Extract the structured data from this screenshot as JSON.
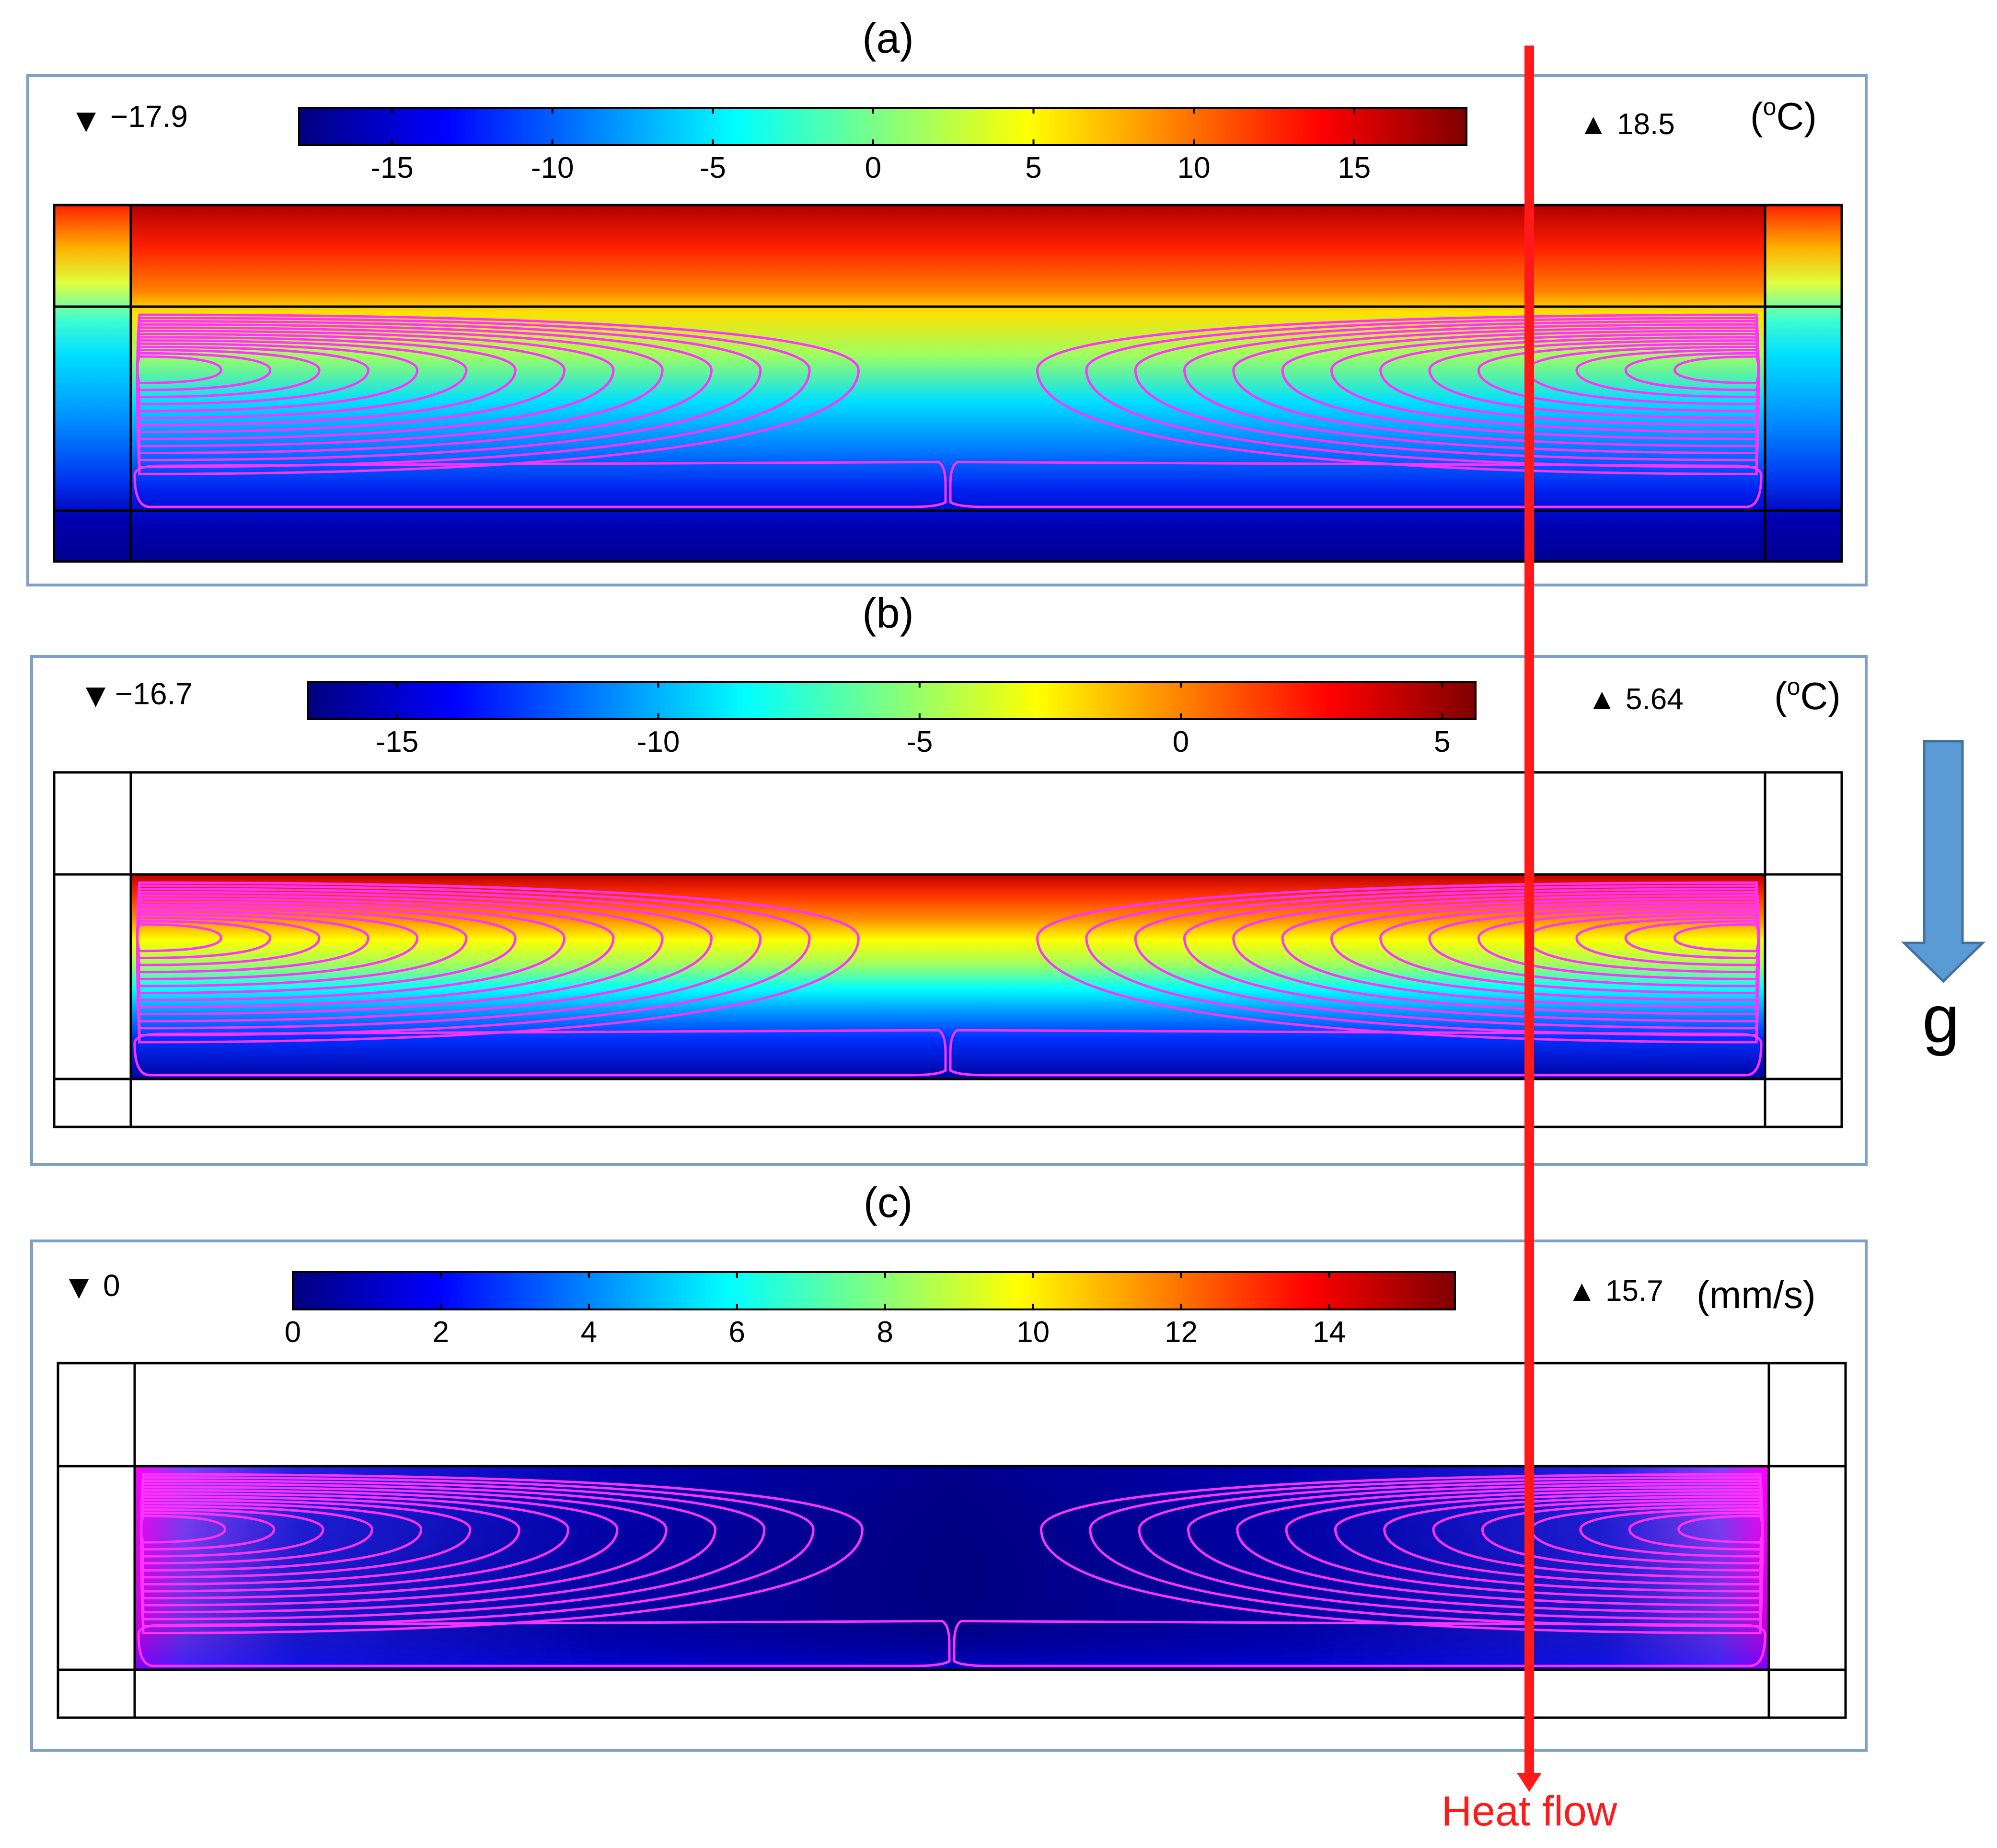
{
  "panels": [
    {
      "label": "(a)",
      "min_text": "−17.9",
      "max_text": "18.5",
      "unit": "(°C)",
      "ticks": [
        {
          "text": "-15",
          "value": -15
        },
        {
          "text": "-10",
          "value": -10
        },
        {
          "text": "-5",
          "value": -5
        },
        {
          "text": "0",
          "value": 0
        },
        {
          "text": "5",
          "value": 5
        },
        {
          "text": "10",
          "value": 10
        },
        {
          "text": "15",
          "value": 15
        }
      ],
      "range": [
        -17.9,
        18.5
      ],
      "field": "temperature",
      "colored_region": "all"
    },
    {
      "label": "(b)",
      "min_text": "−16.7",
      "max_text": "5.64",
      "unit": "(°C)",
      "ticks": [
        {
          "text": "-15",
          "value": -15
        },
        {
          "text": "-10",
          "value": -10
        },
        {
          "text": "-5",
          "value": -5
        },
        {
          "text": "0",
          "value": 0
        },
        {
          "text": "5",
          "value": 5
        }
      ],
      "range": [
        -16.7,
        5.64
      ],
      "field": "temperature",
      "colored_region": "cavity"
    },
    {
      "label": "(c)",
      "min_text": "0",
      "max_text": "15.7",
      "unit": "(mm/s)",
      "ticks": [
        {
          "text": "0",
          "value": 0
        },
        {
          "text": "2",
          "value": 2
        },
        {
          "text": "4",
          "value": 4
        },
        {
          "text": "6",
          "value": 6
        },
        {
          "text": "8",
          "value": 8
        },
        {
          "text": "10",
          "value": 10
        },
        {
          "text": "12",
          "value": 12
        },
        {
          "text": "14",
          "value": 14
        }
      ],
      "range": [
        0,
        15.7
      ],
      "field": "velocity",
      "colored_region": "cavity"
    }
  ],
  "gravity_label": "g",
  "heat_flow_label": "Heat flow",
  "colors": {
    "frame": "#7f9fc4",
    "streamline": "#ff33ff",
    "heat_flow": "#ff1a1a",
    "gravity_arrow": "#5b9bd5"
  },
  "colormap": [
    "#00007f",
    "#0000ff",
    "#0080ff",
    "#00ffff",
    "#80ff80",
    "#ffff00",
    "#ff8000",
    "#ff0000",
    "#7f0000"
  ]
}
